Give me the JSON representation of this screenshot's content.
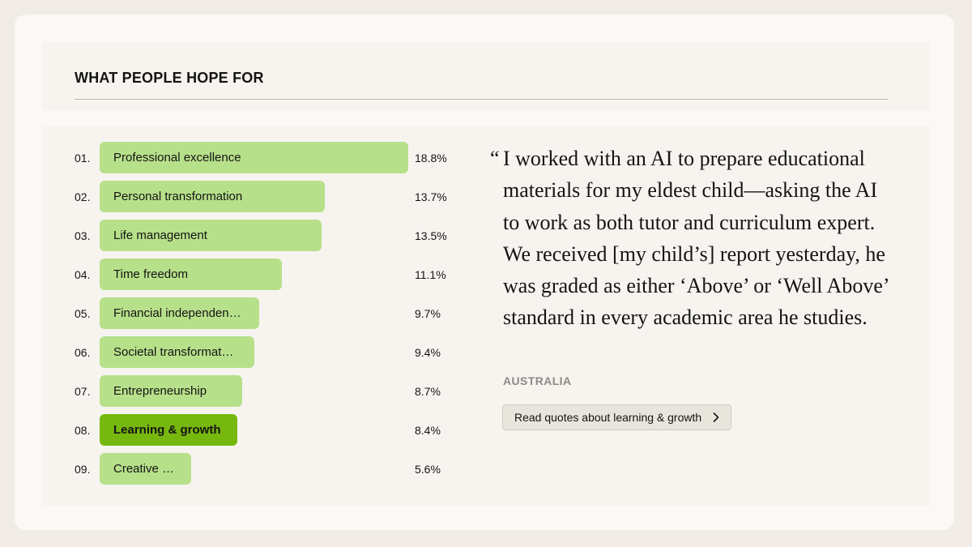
{
  "section_title": "WHAT PEOPLE HOPE FOR",
  "chart_data": {
    "type": "bar",
    "orientation": "horizontal",
    "title": "WHAT PEOPLE HOPE FOR",
    "categories": [
      "Professional excellence",
      "Personal transformation",
      "Life management",
      "Time freedom",
      "Financial independen…",
      "Societal transformat…",
      "Entrepreneurship",
      "Learning & growth",
      "Creative …"
    ],
    "ranks": [
      "01.",
      "02.",
      "03.",
      "04.",
      "05.",
      "06.",
      "07.",
      "08.",
      "09."
    ],
    "values": [
      18.8,
      13.7,
      13.5,
      11.1,
      9.7,
      9.4,
      8.7,
      8.4,
      5.6
    ],
    "value_labels": [
      "18.8%",
      "13.7%",
      "13.5%",
      "11.1%",
      "9.7%",
      "9.4%",
      "8.7%",
      "8.4%",
      "5.6%"
    ],
    "highlighted_index": 7,
    "xlim": [
      0,
      18.8
    ],
    "colors": {
      "bar": "#b7e08a",
      "highlight": "#77b80e"
    }
  },
  "quote": {
    "open_mark": "“",
    "text": "I worked with an AI to prepare educational materials for my eldest child—asking the AI to work as both tutor and curriculum expert. We received [my child’s] report yesterday, he was graded as either ‘Above’ or ‘Well Above’ standard in every academic area he studies.",
    "country": "AUSTRALIA"
  },
  "read_button": {
    "label": "Read quotes about learning & growth",
    "icon": "chevron-right-icon"
  }
}
